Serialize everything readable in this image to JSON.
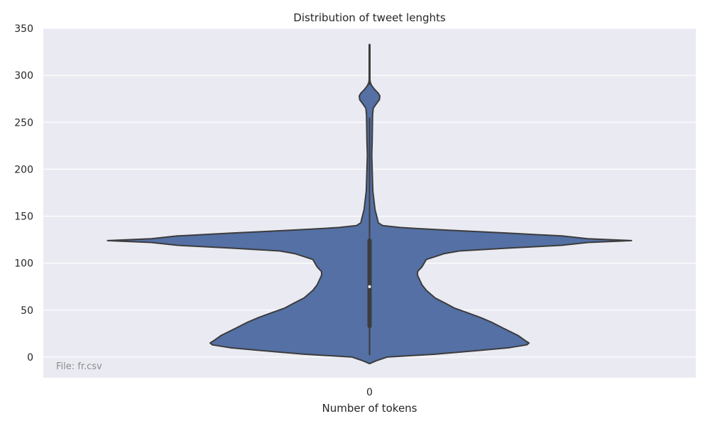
{
  "chart_data": {
    "type": "violin",
    "title": "Distribution of tweet lenghts",
    "xlabel": "Number of tokens",
    "ylabel": "",
    "categories": [
      "0"
    ],
    "ylim": [
      -22,
      350
    ],
    "yticks": [
      0,
      50,
      100,
      150,
      200,
      250,
      300,
      350
    ],
    "grid": true,
    "annotation": "File: fr.csv",
    "colors": {
      "violin_fill": "#5470a5",
      "violin_edge": "#3c3c3c",
      "plot_bg": "#eaeaf2",
      "grid": "#ffffff",
      "median": "#ffffff"
    },
    "violin": {
      "min": 2,
      "q1": 33,
      "median": 75,
      "q3": 124,
      "whisker_high": 255,
      "max": 333,
      "density_profile": [
        [
          -7,
          0.0
        ],
        [
          -4,
          0.03
        ],
        [
          0,
          0.08
        ],
        [
          3,
          0.3
        ],
        [
          7,
          0.5
        ],
        [
          10,
          0.64
        ],
        [
          13,
          0.72
        ],
        [
          15,
          0.73
        ],
        [
          18,
          0.71
        ],
        [
          23,
          0.68
        ],
        [
          31,
          0.61
        ],
        [
          37,
          0.56
        ],
        [
          42,
          0.51
        ],
        [
          47,
          0.45
        ],
        [
          52,
          0.39
        ],
        [
          57,
          0.35
        ],
        [
          63,
          0.3
        ],
        [
          71,
          0.26
        ],
        [
          77,
          0.24
        ],
        [
          82,
          0.23
        ],
        [
          87,
          0.22
        ],
        [
          91,
          0.22
        ],
        [
          96,
          0.24
        ],
        [
          100,
          0.25
        ],
        [
          104,
          0.26
        ],
        [
          107,
          0.3
        ],
        [
          110,
          0.34
        ],
        [
          113,
          0.41
        ],
        [
          116,
          0.63
        ],
        [
          119,
          0.88
        ],
        [
          122,
          1.0
        ],
        [
          124,
          1.2
        ],
        [
          126,
          1.0
        ],
        [
          129,
          0.88
        ],
        [
          132,
          0.63
        ],
        [
          135,
          0.37
        ],
        [
          137,
          0.21
        ],
        [
          138,
          0.14
        ],
        [
          140,
          0.06
        ],
        [
          143,
          0.04
        ],
        [
          148,
          0.035
        ],
        [
          157,
          0.025
        ],
        [
          177,
          0.015
        ],
        [
          200,
          0.012
        ],
        [
          215,
          0.01
        ],
        [
          230,
          0.012
        ],
        [
          245,
          0.013
        ],
        [
          258,
          0.014
        ],
        [
          265,
          0.017
        ],
        [
          270,
          0.032
        ],
        [
          274,
          0.045
        ],
        [
          278,
          0.047
        ],
        [
          281,
          0.04
        ],
        [
          285,
          0.023
        ],
        [
          289,
          0.01
        ],
        [
          292,
          0.004
        ],
        [
          296,
          0.001
        ],
        [
          310,
          0.0
        ],
        [
          333,
          0.0
        ]
      ]
    }
  }
}
